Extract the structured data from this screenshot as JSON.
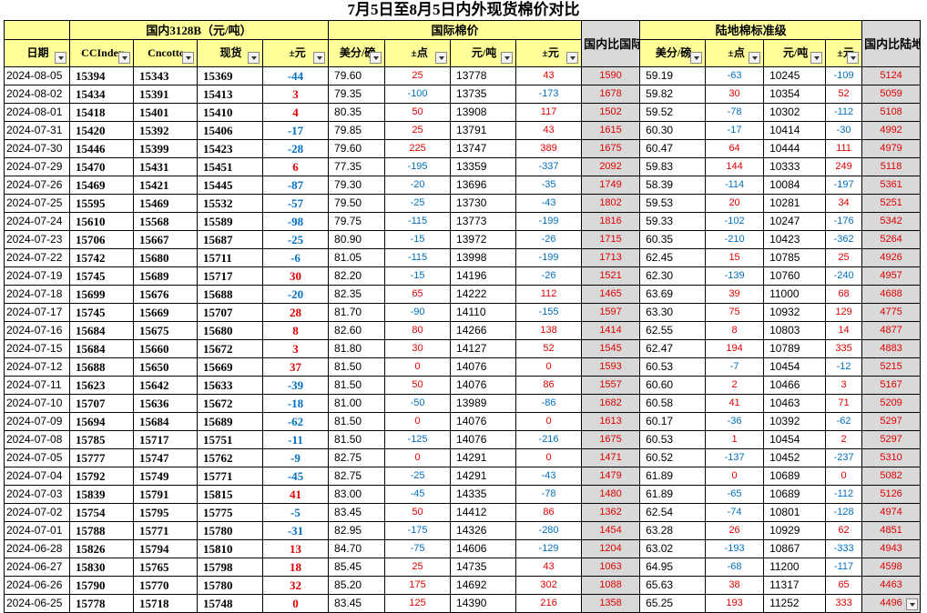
{
  "title": "7月5日至8月5日内外现货棉价对比",
  "colors": {
    "header_bg": "#ffff99",
    "gray_bg": "#d9d9d9",
    "positive": "#e00000",
    "negative": "#0070c0"
  },
  "groups": {
    "domestic": "国内3128B（元/吨）",
    "intl": "国际棉价",
    "ratio_intl": "国内比国际",
    "landed": "陆地棉标准级",
    "ratio_landed": "国内比陆地棉标准级"
  },
  "columns": {
    "date": "日期",
    "ccindex": "CCIndex",
    "cncotton": "Cncotto",
    "spot": "现货",
    "chg": "±元",
    "usd_lb": "美分/磅",
    "pts": "±点",
    "cny_t": "元/吨",
    "chg2": "±元",
    "usd_lb2": "美分/磅",
    "pts2": "±点",
    "cny_t2": "元/吨",
    "chg3": "±元"
  },
  "rows": [
    [
      "2024-08-05",
      "15394",
      "15343",
      "15369",
      "-44",
      "79.60",
      "25",
      "13778",
      "43",
      "1590",
      "59.19",
      "-63",
      "10245",
      "-109",
      "5124"
    ],
    [
      "2024-08-02",
      "15434",
      "15391",
      "15413",
      "3",
      "79.35",
      "-100",
      "13735",
      "-173",
      "1678",
      "59.82",
      "30",
      "10354",
      "52",
      "5059"
    ],
    [
      "2024-08-01",
      "15418",
      "15401",
      "15410",
      "4",
      "80.35",
      "50",
      "13908",
      "117",
      "1502",
      "59.52",
      "-78",
      "10302",
      "-112",
      "5108"
    ],
    [
      "2024-07-31",
      "15420",
      "15392",
      "15406",
      "-17",
      "79.85",
      "25",
      "13791",
      "43",
      "1615",
      "60.30",
      "-17",
      "10414",
      "-30",
      "4992"
    ],
    [
      "2024-07-30",
      "15446",
      "15399",
      "15423",
      "-28",
      "79.60",
      "225",
      "13747",
      "389",
      "1675",
      "60.47",
      "64",
      "10444",
      "111",
      "4979"
    ],
    [
      "2024-07-29",
      "15470",
      "15431",
      "15451",
      "6",
      "77.35",
      "-195",
      "13359",
      "-337",
      "2092",
      "59.83",
      "144",
      "10333",
      "249",
      "5118"
    ],
    [
      "2024-07-26",
      "15469",
      "15421",
      "15445",
      "-87",
      "79.30",
      "-20",
      "13696",
      "-35",
      "1749",
      "58.39",
      "-114",
      "10084",
      "-197",
      "5361"
    ],
    [
      "2024-07-25",
      "15595",
      "15469",
      "15532",
      "-57",
      "79.50",
      "-25",
      "13730",
      "-43",
      "1802",
      "59.53",
      "20",
      "10281",
      "34",
      "5251"
    ],
    [
      "2024-07-24",
      "15610",
      "15568",
      "15589",
      "-98",
      "79.75",
      "-115",
      "13773",
      "-199",
      "1816",
      "59.33",
      "-102",
      "10247",
      "-176",
      "5342"
    ],
    [
      "2024-07-23",
      "15706",
      "15667",
      "15687",
      "-25",
      "80.90",
      "-15",
      "13972",
      "-26",
      "1715",
      "60.35",
      "-210",
      "10423",
      "-362",
      "5264"
    ],
    [
      "2024-07-22",
      "15742",
      "15680",
      "15711",
      "-6",
      "81.05",
      "-115",
      "13998",
      "-199",
      "1713",
      "62.45",
      "15",
      "10785",
      "25",
      "4926"
    ],
    [
      "2024-07-19",
      "15745",
      "15689",
      "15717",
      "30",
      "82.20",
      "-15",
      "14196",
      "-26",
      "1521",
      "62.30",
      "-139",
      "10760",
      "-240",
      "4957"
    ],
    [
      "2024-07-18",
      "15699",
      "15676",
      "15688",
      "-20",
      "82.35",
      "65",
      "14222",
      "112",
      "1465",
      "63.69",
      "39",
      "11000",
      "68",
      "4688"
    ],
    [
      "2024-07-17",
      "15745",
      "15669",
      "15707",
      "28",
      "81.70",
      "-90",
      "14110",
      "-155",
      "1597",
      "63.30",
      "75",
      "10932",
      "129",
      "4775"
    ],
    [
      "2024-07-16",
      "15684",
      "15675",
      "15680",
      "8",
      "82.60",
      "80",
      "14266",
      "138",
      "1414",
      "62.55",
      "8",
      "10803",
      "14",
      "4877"
    ],
    [
      "2024-07-15",
      "15684",
      "15660",
      "15672",
      "3",
      "81.80",
      "30",
      "14127",
      "52",
      "1545",
      "62.47",
      "194",
      "10789",
      "335",
      "4883"
    ],
    [
      "2024-07-12",
      "15688",
      "15650",
      "15669",
      "37",
      "81.50",
      "0",
      "14076",
      "0",
      "1593",
      "60.53",
      "-7",
      "10454",
      "-12",
      "5215"
    ],
    [
      "2024-07-11",
      "15623",
      "15642",
      "15633",
      "-39",
      "81.50",
      "50",
      "14076",
      "86",
      "1557",
      "60.60",
      "2",
      "10466",
      "3",
      "5167"
    ],
    [
      "2024-07-10",
      "15707",
      "15636",
      "15672",
      "-18",
      "81.00",
      "-50",
      "13989",
      "-86",
      "1682",
      "60.58",
      "41",
      "10463",
      "71",
      "5209"
    ],
    [
      "2024-07-09",
      "15694",
      "15684",
      "15689",
      "-62",
      "81.50",
      "0",
      "14076",
      "0",
      "1613",
      "60.17",
      "-36",
      "10392",
      "-62",
      "5297"
    ],
    [
      "2024-07-08",
      "15785",
      "15717",
      "15751",
      "-11",
      "81.50",
      "-125",
      "14076",
      "-216",
      "1675",
      "60.53",
      "1",
      "10454",
      "2",
      "5297"
    ],
    [
      "2024-07-05",
      "15777",
      "15747",
      "15762",
      "-9",
      "82.75",
      "0",
      "14291",
      "0",
      "1471",
      "60.52",
      "-137",
      "10452",
      "-237",
      "5310"
    ],
    [
      "2024-07-04",
      "15792",
      "15749",
      "15771",
      "-45",
      "82.75",
      "-25",
      "14291",
      "-43",
      "1479",
      "61.89",
      "0",
      "10689",
      "0",
      "5082"
    ],
    [
      "2024-07-03",
      "15839",
      "15791",
      "15815",
      "41",
      "83.00",
      "-45",
      "14335",
      "-78",
      "1480",
      "61.89",
      "-65",
      "10689",
      "-112",
      "5126"
    ],
    [
      "2024-07-02",
      "15754",
      "15795",
      "15775",
      "-5",
      "83.45",
      "50",
      "14412",
      "86",
      "1362",
      "62.54",
      "-74",
      "10801",
      "-128",
      "4974"
    ],
    [
      "2024-07-01",
      "15788",
      "15771",
      "15780",
      "-31",
      "82.95",
      "-175",
      "14326",
      "-280",
      "1454",
      "63.28",
      "26",
      "10929",
      "62",
      "4851"
    ],
    [
      "2024-06-28",
      "15826",
      "15794",
      "15810",
      "13",
      "84.70",
      "-75",
      "14606",
      "-129",
      "1204",
      "63.02",
      "-193",
      "10867",
      "-333",
      "4943"
    ],
    [
      "2024-06-27",
      "15830",
      "15765",
      "15798",
      "18",
      "85.45",
      "25",
      "14735",
      "43",
      "1063",
      "64.95",
      "-68",
      "11200",
      "-117",
      "4598"
    ],
    [
      "2024-06-26",
      "15790",
      "15770",
      "15780",
      "32",
      "85.20",
      "175",
      "14692",
      "302",
      "1088",
      "65.63",
      "38",
      "11317",
      "65",
      "4463"
    ],
    [
      "2024-06-25",
      "15778",
      "15718",
      "15748",
      "0",
      "83.45",
      "125",
      "14390",
      "216",
      "1358",
      "65.25",
      "193",
      "11252",
      "333",
      "4496"
    ]
  ]
}
